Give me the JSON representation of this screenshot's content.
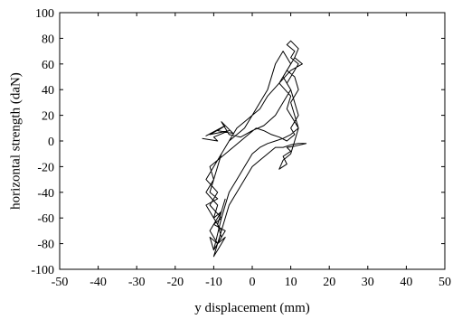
{
  "chart_data": {
    "type": "line",
    "title": "",
    "xlabel": "y displacement (mm)",
    "ylabel": "horizontal strength (daN)",
    "xlim": [
      -50,
      50
    ],
    "ylim": [
      -100,
      100
    ],
    "xticks": [
      -50,
      -40,
      -30,
      -20,
      -10,
      0,
      10,
      20,
      30,
      40,
      50
    ],
    "yticks": [
      -100,
      -80,
      -60,
      -40,
      -20,
      0,
      20,
      40,
      60,
      80,
      100
    ],
    "grid": false,
    "line_color": "#000000",
    "series": [
      {
        "x": [
          -13,
          -9,
          -10,
          -6,
          -11,
          -8,
          -12,
          -7,
          -9,
          -5,
          -8,
          -6,
          -3,
          0,
          3,
          6,
          8,
          10,
          9,
          11,
          12,
          10,
          11,
          9,
          10,
          12,
          11,
          13,
          10,
          7,
          4,
          2,
          0,
          -2,
          -4,
          -5,
          -6,
          -8,
          -9,
          -10,
          -11,
          -9,
          -12,
          -10,
          -8,
          -11,
          -9,
          -7,
          -9,
          -10,
          -8,
          -6,
          -4,
          -2,
          0,
          2,
          4,
          6,
          8,
          10,
          12,
          14,
          11,
          9,
          10,
          8,
          9,
          7,
          8,
          10,
          11,
          12,
          11,
          10,
          12,
          11,
          9,
          10,
          8,
          6,
          4,
          2,
          0,
          -2,
          -4,
          -6,
          -8,
          -10,
          -12,
          -9,
          -11,
          -8,
          -10,
          -7,
          -9,
          -11,
          -10,
          -8,
          -6,
          -4,
          -2,
          0,
          2,
          4,
          6,
          8,
          10,
          12,
          11,
          9,
          10,
          7,
          9,
          11,
          8,
          10,
          11,
          12,
          10,
          11,
          9,
          7,
          5,
          3,
          1,
          -1,
          -3,
          -5,
          -7,
          -9,
          -11,
          -10,
          -12,
          -9,
          -10,
          -8,
          -9,
          -10,
          -8,
          -9,
          -8,
          -7
        ],
        "y": [
          2,
          0,
          3,
          8,
          5,
          10,
          4,
          12,
          8,
          6,
          15,
          5,
          3,
          8,
          12,
          20,
          30,
          40,
          45,
          55,
          60,
          65,
          70,
          75,
          78,
          72,
          65,
          60,
          55,
          45,
          35,
          25,
          20,
          15,
          10,
          5,
          0,
          -10,
          -20,
          -30,
          -40,
          -45,
          -50,
          -60,
          -55,
          -70,
          -80,
          -75,
          -85,
          -90,
          -70,
          -50,
          -40,
          -30,
          -20,
          -15,
          -10,
          -5,
          -5,
          -3,
          -2,
          -2,
          -4,
          -5,
          -8,
          -12,
          -18,
          -22,
          -15,
          -10,
          0,
          10,
          20,
          30,
          40,
          50,
          55,
          60,
          70,
          60,
          40,
          30,
          20,
          10,
          5,
          0,
          -10,
          -20,
          -30,
          -40,
          -50,
          -60,
          -65,
          -70,
          -80,
          -75,
          -85,
          -60,
          -40,
          -30,
          -20,
          -10,
          -5,
          -2,
          0,
          2,
          5,
          10,
          15,
          25,
          35,
          45,
          55,
          65,
          50,
          40,
          30,
          20,
          10,
          5,
          0,
          3,
          5,
          8,
          10,
          5,
          0,
          -5,
          -10,
          -15,
          -20,
          -30,
          -40,
          -50,
          -60,
          -70,
          -80,
          -85,
          -75,
          -65,
          -55,
          -45
        ]
      }
    ]
  }
}
